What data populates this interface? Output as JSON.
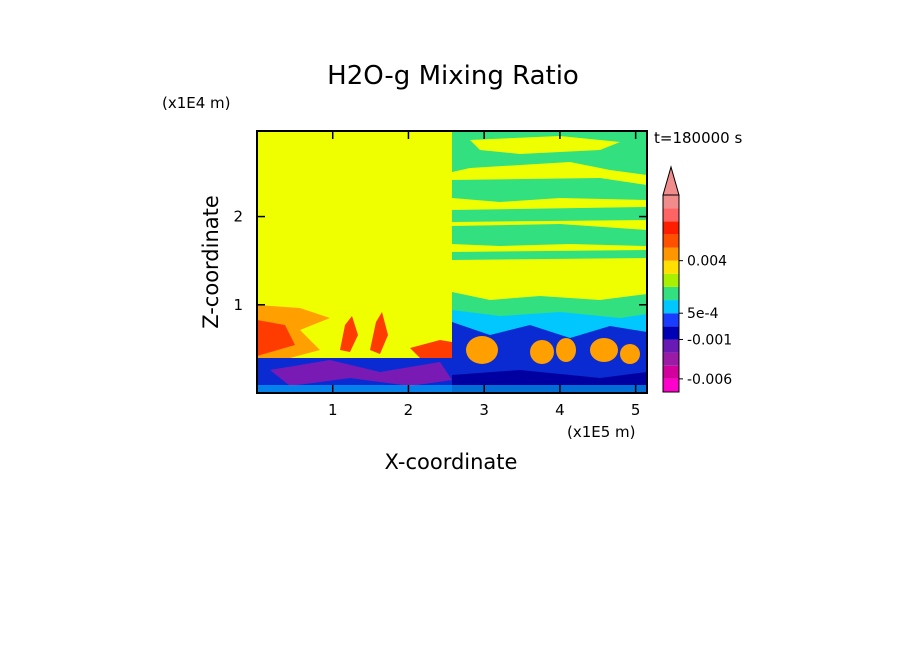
{
  "chart_data": {
    "type": "heatmap",
    "title": "H2O-g Mixing Ratio",
    "time_label": "t=180000 s",
    "xlabel": "X-coordinate",
    "ylabel": "Z-coordinate",
    "x_unit": "(x1E5 m)",
    "y_unit": "(x1E4 m)",
    "xlim": [
      0,
      5.15
    ],
    "ylim": [
      0,
      2.97
    ],
    "x_ticks": [
      1,
      2,
      3,
      4,
      5
    ],
    "y_ticks": [
      1,
      2
    ],
    "colorbar": {
      "colors": [
        "#ff00cc",
        "#d2009c",
        "#9b1aa6",
        "#6a1ab4",
        "#0000b4",
        "#1a3cff",
        "#00c8ff",
        "#32e080",
        "#a8f000",
        "#ffe000",
        "#ff9600",
        "#ff5000",
        "#ff1e00",
        "#ff6464",
        "#f08c8c"
      ],
      "labels": [
        {
          "text": "0.004",
          "value": 0.004
        },
        {
          "text": "5e-4",
          "value": 0.0005
        },
        {
          "text": "-0.001",
          "value": -0.001
        },
        {
          "text": "-0.006",
          "value": -0.006
        }
      ]
    },
    "fields": {
      "background": "#f0ff00",
      "blue": "#0a2bd2",
      "dark_blue": "#0000a0",
      "purple": "#7a1ab4",
      "cyan": "#00c8ff",
      "green": "#32e080",
      "orange": "#ffa000",
      "red": "#ff3c00",
      "deep_red": "#ff1e00"
    }
  }
}
